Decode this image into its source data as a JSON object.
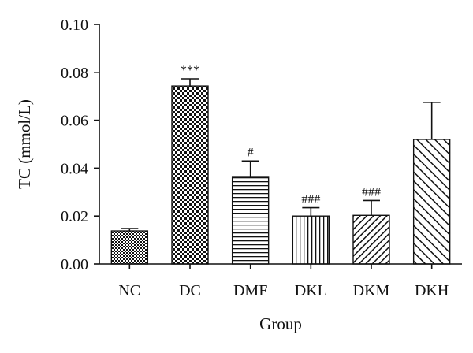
{
  "chart_data": {
    "type": "bar",
    "title": "",
    "xlabel": "Group",
    "ylabel": "TC (mmol/L)",
    "ylim": [
      0,
      0.1
    ],
    "yticks": [
      "0.00",
      "0.02",
      "0.04",
      "0.06",
      "0.08",
      "0.10"
    ],
    "categories": [
      "NC",
      "DC",
      "DMF",
      "DKL",
      "DKM",
      "DKH"
    ],
    "values": [
      0.0138,
      0.0743,
      0.0365,
      0.02,
      0.0203,
      0.052
    ],
    "errors": [
      0.001,
      0.003,
      0.0065,
      0.0035,
      0.0062,
      0.0155
    ],
    "annotations": [
      "",
      "***",
      "#",
      "###",
      "###",
      ""
    ],
    "patterns": [
      "checkerboard-fine",
      "checkerboard",
      "horizontal-lines",
      "vertical-lines",
      "diagonal-up",
      "diagonal-down"
    ],
    "grid": false,
    "legend": "none"
  }
}
